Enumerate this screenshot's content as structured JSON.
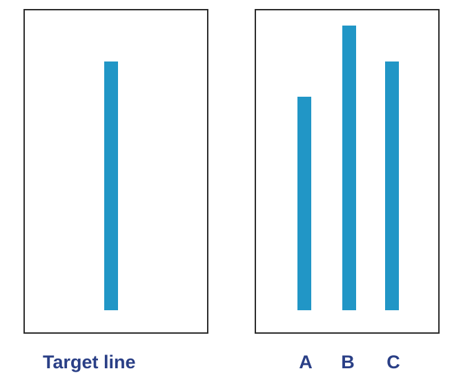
{
  "colors": {
    "bar": "#2196c6",
    "caption": "#2a3f86",
    "border": "#2b2b2b"
  },
  "diagram": {
    "target": {
      "label": "Target line",
      "length": 360
    },
    "comparisons": [
      {
        "label": "A",
        "length": 309
      },
      {
        "label": "B",
        "length": 412
      },
      {
        "label": "C",
        "length": 360
      }
    ]
  }
}
